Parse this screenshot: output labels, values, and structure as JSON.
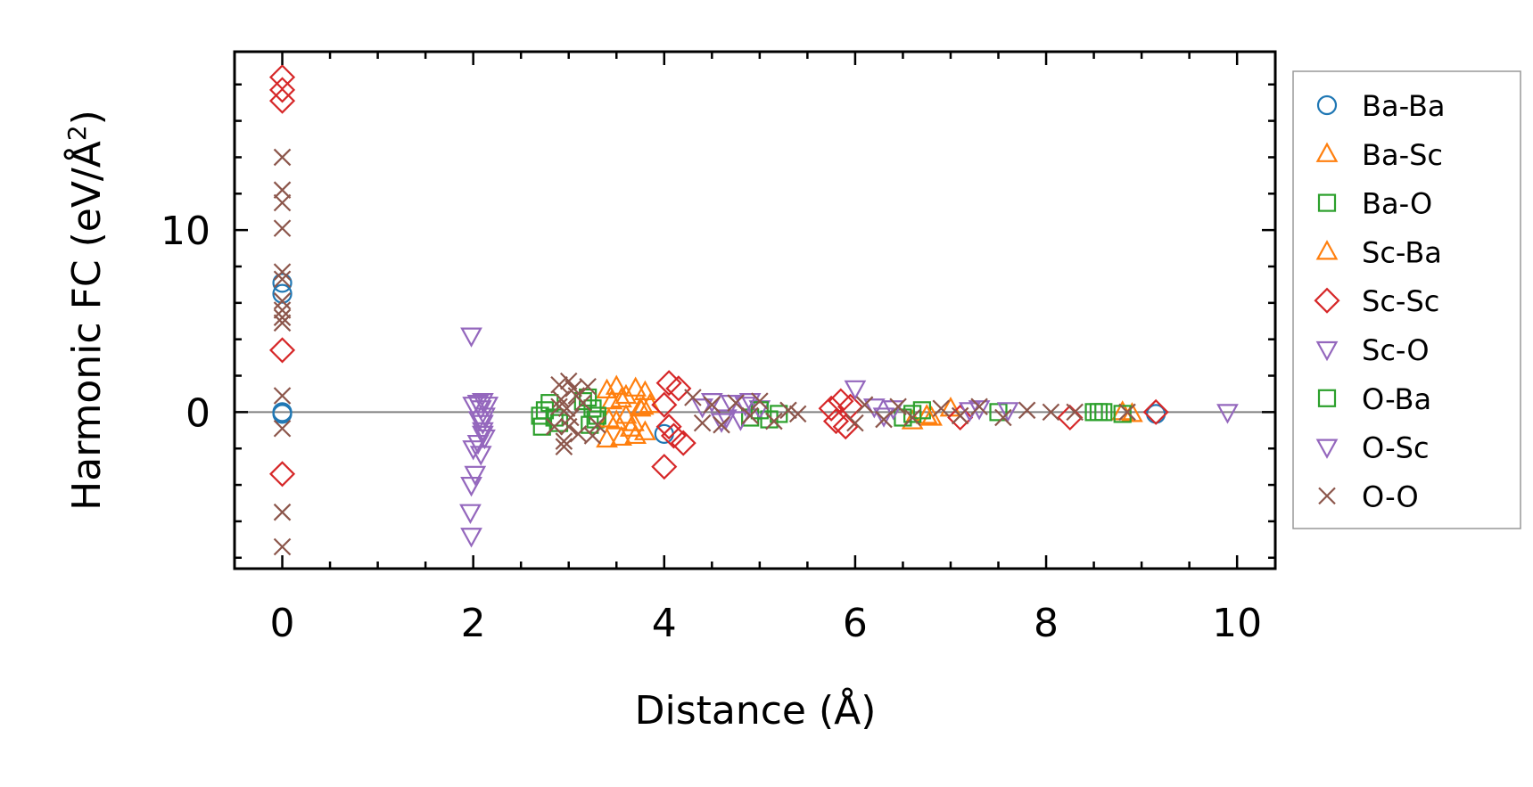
{
  "chart_data": {
    "type": "scatter",
    "title": "",
    "xlabel": "Distance (Å)",
    "ylabel_main": "Harmonic FC (eV/Å",
    "ylabel_sup": "2",
    "ylabel_end": ")",
    "xlim": [
      -0.5,
      10.4
    ],
    "ylim": [
      -8.6,
      19.8
    ],
    "xticks": [
      0,
      2,
      4,
      6,
      8,
      10
    ],
    "xtick_labels": [
      "0",
      "2",
      "4",
      "6",
      "8",
      "10"
    ],
    "yticks": [
      0,
      10
    ],
    "ytick_labels": [
      "0",
      "10"
    ],
    "x_minor_step": 0.5,
    "y_minor_step": 2,
    "hline_y": 0,
    "legend_position": "right-outside",
    "series": [
      {
        "name": "Ba-Ba",
        "marker": "circle",
        "color": "#1f77b4",
        "points": [
          [
            0,
            7.1
          ],
          [
            0,
            6.5
          ],
          [
            0,
            0
          ],
          [
            0,
            -0.1
          ],
          [
            4.0,
            -1.2
          ],
          [
            9.15,
            -0.1
          ]
        ]
      },
      {
        "name": "Ba-Sc",
        "marker": "triangle-up",
        "color": "#ff7f0e",
        "points": [
          [
            3.4,
            1.2
          ],
          [
            3.45,
            0.6
          ],
          [
            3.5,
            -0.5
          ],
          [
            3.55,
            -1.4
          ],
          [
            3.6,
            0.9
          ],
          [
            3.65,
            -0.9
          ],
          [
            3.7,
            1.3
          ],
          [
            3.75,
            0.2
          ],
          [
            3.8,
            -1.1
          ],
          [
            3.4,
            -1.5
          ],
          [
            3.5,
            1.4
          ],
          [
            3.6,
            -0.2
          ],
          [
            3.7,
            -1.3
          ],
          [
            3.8,
            1.1
          ],
          [
            3.85,
            0.4
          ],
          [
            6.6,
            -0.5
          ],
          [
            6.8,
            -0.3
          ],
          [
            7.0,
            0.2
          ],
          [
            8.8,
            0
          ],
          [
            8.9,
            -0.1
          ]
        ]
      },
      {
        "name": "Ba-O",
        "marker": "square",
        "color": "#2ca02c",
        "points": [
          [
            2.7,
            -0.2
          ],
          [
            2.72,
            -0.8
          ],
          [
            2.8,
            0.5
          ],
          [
            2.9,
            -0.6
          ],
          [
            3.2,
            0.8
          ],
          [
            3.22,
            -0.7
          ],
          [
            3.25,
            0.2
          ],
          [
            3.28,
            -0.4
          ],
          [
            4.9,
            -0.3
          ],
          [
            5.1,
            -0.4
          ],
          [
            5.2,
            -0.1
          ],
          [
            6.5,
            -0.3
          ],
          [
            6.7,
            0.1
          ],
          [
            7.5,
            0
          ],
          [
            8.5,
            0
          ],
          [
            8.6,
            0
          ],
          [
            8.8,
            -0.1
          ]
        ]
      },
      {
        "name": "Sc-Ba",
        "marker": "triangle-up",
        "color": "#ff7f0e",
        "points": [
          [
            3.42,
            -0.4
          ],
          [
            3.55,
            0.7
          ],
          [
            3.68,
            -0.6
          ],
          [
            3.78,
            0.3
          ],
          [
            6.75,
            -0.2
          ]
        ]
      },
      {
        "name": "Sc-Sc",
        "marker": "diamond",
        "color": "#d62728",
        "points": [
          [
            0,
            18.4
          ],
          [
            0,
            17.7
          ],
          [
            0,
            17.1
          ],
          [
            0,
            3.4
          ],
          [
            0,
            -3.4
          ],
          [
            4.0,
            -3.0
          ],
          [
            4.05,
            1.6
          ],
          [
            4.1,
            -1.3
          ],
          [
            4.15,
            1.3
          ],
          [
            4.2,
            -1.7
          ],
          [
            4.0,
            0.4
          ],
          [
            4.05,
            -0.8
          ],
          [
            5.75,
            0.2
          ],
          [
            5.8,
            -0.5
          ],
          [
            5.85,
            0.6
          ],
          [
            5.9,
            -0.8
          ],
          [
            5.95,
            0.3
          ],
          [
            7.1,
            -0.3
          ],
          [
            8.25,
            -0.3
          ],
          [
            9.15,
            0
          ]
        ]
      },
      {
        "name": "Sc-O",
        "marker": "triangle-down",
        "color": "#9467bd",
        "points": [
          [
            1.98,
            4.2
          ],
          [
            1.98,
            -6.8
          ],
          [
            1.97,
            -5.5
          ],
          [
            1.98,
            -4.0
          ],
          [
            2.02,
            -3.4
          ],
          [
            2.0,
            -2.0
          ],
          [
            2.05,
            -1.7
          ],
          [
            2.08,
            -2.3
          ],
          [
            2.1,
            -1.0
          ],
          [
            2.12,
            -1.4
          ],
          [
            2.05,
            0.5
          ],
          [
            2.08,
            0.2
          ],
          [
            2.1,
            0.6
          ],
          [
            2.12,
            -0.2
          ],
          [
            2.15,
            0.4
          ],
          [
            2.1,
            -0.6
          ],
          [
            4.5,
            0.6
          ],
          [
            4.6,
            -0.5
          ],
          [
            4.7,
            0.5
          ],
          [
            4.8,
            -0.4
          ],
          [
            4.9,
            0.6
          ],
          [
            5.0,
            0.2
          ],
          [
            6.0,
            1.3
          ],
          [
            6.2,
            0.3
          ],
          [
            6.3,
            -0.2
          ],
          [
            7.3,
            0.2
          ],
          [
            7.6,
            0.1
          ],
          [
            9.9,
            0
          ]
        ]
      },
      {
        "name": "O-Ba",
        "marker": "square",
        "color": "#2ca02c",
        "points": [
          [
            2.75,
            0.1
          ],
          [
            2.85,
            -0.3
          ],
          [
            3.15,
            0.6
          ],
          [
            3.3,
            -0.2
          ],
          [
            5.0,
            0.1
          ],
          [
            6.6,
            -0.1
          ],
          [
            8.55,
            0
          ]
        ]
      },
      {
        "name": "O-Sc",
        "marker": "triangle-down",
        "color": "#9467bd",
        "points": [
          [
            2.0,
            0.4
          ],
          [
            2.06,
            -0.4
          ],
          [
            2.1,
            -1.2
          ],
          [
            4.4,
            0.3
          ],
          [
            4.65,
            -0.3
          ],
          [
            4.85,
            0.4
          ],
          [
            6.4,
            0.2
          ],
          [
            7.2,
            0.1
          ]
        ]
      },
      {
        "name": "O-O",
        "marker": "x",
        "color": "#8c564b",
        "points": [
          [
            0,
            14.0
          ],
          [
            0,
            12.2
          ],
          [
            0,
            11.5
          ],
          [
            0,
            10.1
          ],
          [
            0,
            7.7
          ],
          [
            0,
            7.3
          ],
          [
            0,
            6.1
          ],
          [
            0,
            5.6
          ],
          [
            0,
            5.2
          ],
          [
            0,
            4.9
          ],
          [
            0,
            0.9
          ],
          [
            0,
            -0.9
          ],
          [
            0,
            -5.5
          ],
          [
            0,
            -7.4
          ],
          [
            2.9,
            1.5
          ],
          [
            2.95,
            -1.6
          ],
          [
            2.92,
            0.7
          ],
          [
            3.0,
            -0.8
          ],
          [
            3.05,
            1.3
          ],
          [
            3.1,
            -1.2
          ],
          [
            2.98,
            0.2
          ],
          [
            3.02,
            -0.3
          ],
          [
            3.08,
            0.9
          ],
          [
            3.2,
            1.4
          ],
          [
            3.25,
            -1.3
          ],
          [
            3.15,
            0.5
          ],
          [
            2.85,
            -0.8
          ],
          [
            2.9,
            0.3
          ],
          [
            3.3,
            -0.7
          ],
          [
            3.0,
            1.7
          ],
          [
            2.95,
            -1.9
          ],
          [
            4.3,
            0.8
          ],
          [
            4.4,
            -0.6
          ],
          [
            4.5,
            0.4
          ],
          [
            4.6,
            -0.7
          ],
          [
            4.75,
            0.5
          ],
          [
            4.9,
            -0.2
          ],
          [
            5.0,
            0.6
          ],
          [
            5.15,
            -0.5
          ],
          [
            5.3,
            0.1
          ],
          [
            5.4,
            -0.1
          ],
          [
            6.0,
            -0.6
          ],
          [
            6.1,
            0.4
          ],
          [
            6.3,
            -0.4
          ],
          [
            6.45,
            0.3
          ],
          [
            6.6,
            -0.3
          ],
          [
            6.9,
            0.2
          ],
          [
            7.1,
            -0.2
          ],
          [
            7.3,
            0.3
          ],
          [
            7.55,
            -0.3
          ],
          [
            7.8,
            0.1
          ],
          [
            8.05,
            0
          ],
          [
            8.3,
            0
          ],
          [
            8.85,
            0
          ]
        ]
      }
    ]
  }
}
